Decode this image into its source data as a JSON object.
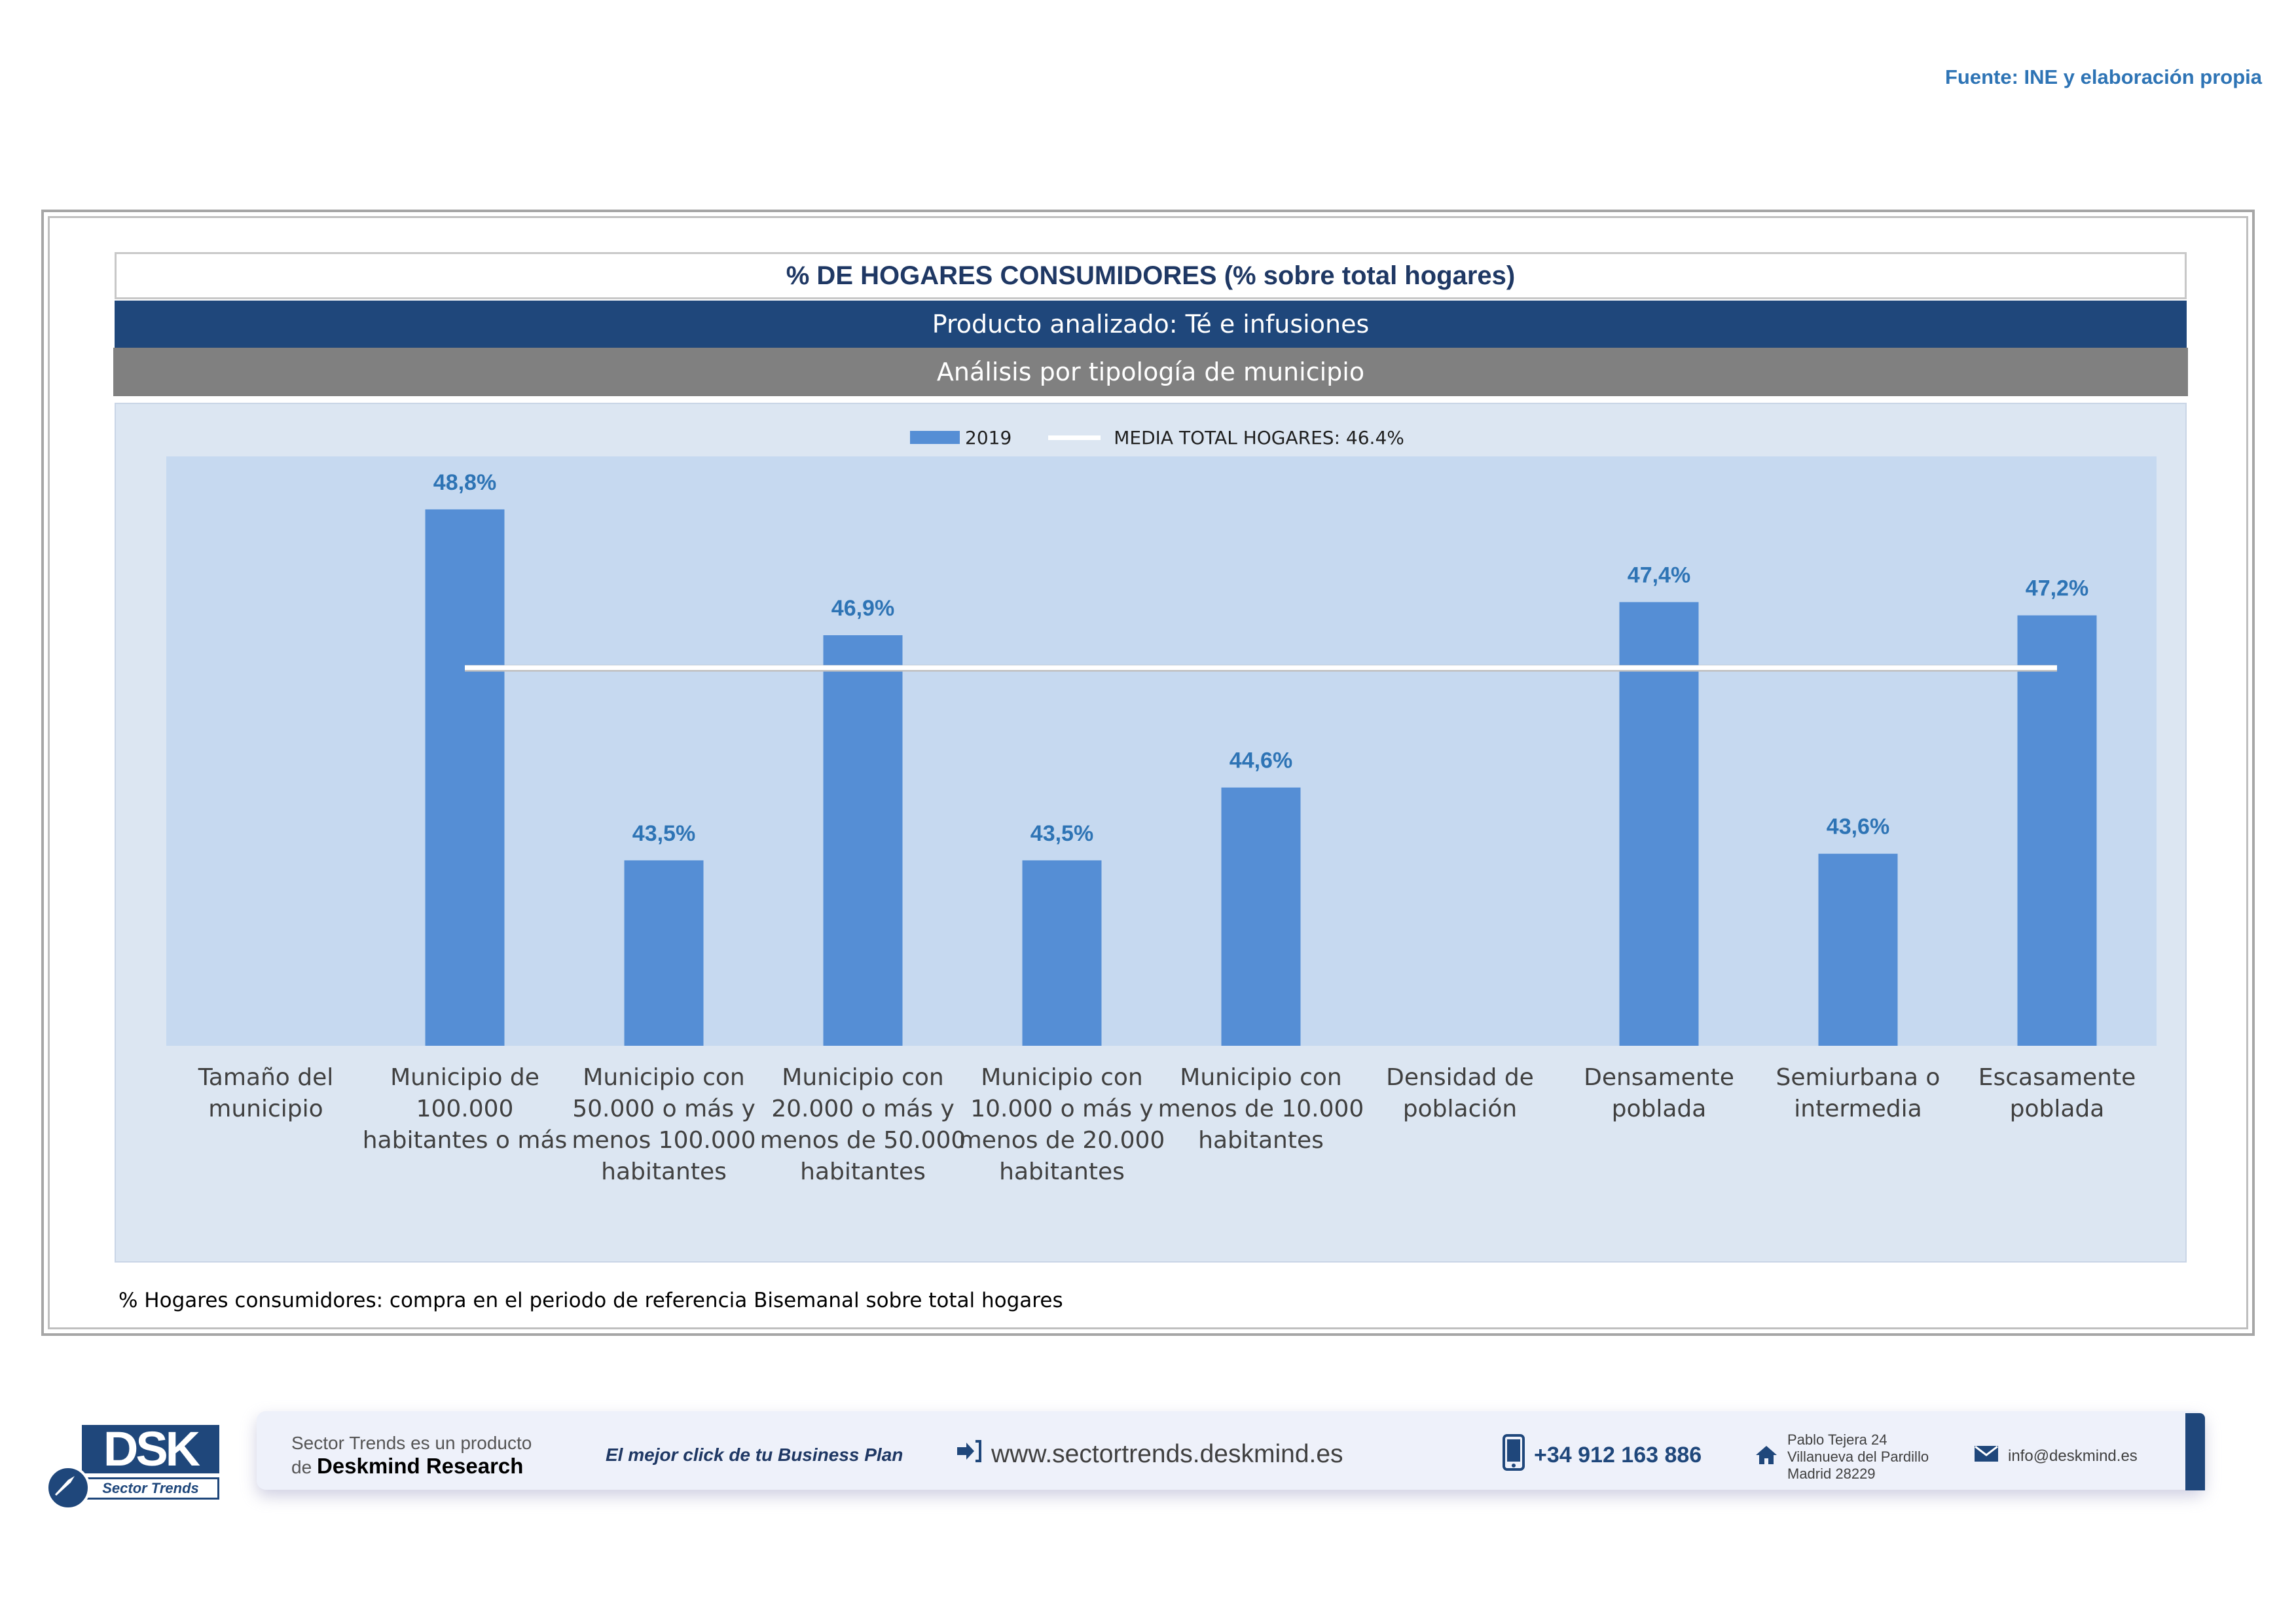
{
  "source": "Fuente: INE y elaboración propia",
  "header": {
    "title": "% DE HOGARES CONSUMIDORES (% sobre total hogares)",
    "product": "Producto analizado: Té e infusiones",
    "analysis": "Análisis por tipología de municipio"
  },
  "legend": {
    "series_label": "2019",
    "average_label": "MEDIA TOTAL  HOGARES:  46.4%"
  },
  "chart_data": {
    "type": "bar",
    "title": "% DE HOGARES CONSUMIDORES (% sobre total hogares)",
    "categories": [
      "Tamaño del municipio",
      "Municipio de 100.000 habitantes o más",
      "Municipio con 50.000 o más y menos 100.000 habitantes",
      "Municipio con 20.000 o más y menos de 50.000 habitantes",
      "Municipio con 10.000 o más y menos de 20.000 habitantes",
      "Municipio con menos de 10.000 habitantes",
      "Densidad de población",
      "Densamente poblada",
      "Semiurbana o intermedia",
      "Escasamente poblada"
    ],
    "category_lines": [
      [
        "Tamaño del",
        "municipio"
      ],
      [
        "Municipio de",
        "100.000",
        "habitantes o más"
      ],
      [
        "Municipio con",
        "50.000 o más y",
        "menos 100.000",
        "habitantes"
      ],
      [
        "Municipio con",
        "20.000 o más y",
        "menos de 50.000",
        "habitantes"
      ],
      [
        "Municipio con",
        "10.000 o más y",
        "menos de 20.000",
        "habitantes"
      ],
      [
        "Municipio con",
        "menos de 10.000",
        "habitantes"
      ],
      [
        "Densidad de",
        "población"
      ],
      [
        "Densamente",
        "poblada"
      ],
      [
        "Semiurbana o",
        "intermedia"
      ],
      [
        "Escasamente",
        "poblada"
      ]
    ],
    "series": [
      {
        "name": "2019",
        "color": "#558ED5",
        "values": [
          null,
          48.8,
          43.5,
          46.9,
          43.5,
          44.6,
          null,
          47.4,
          43.6,
          47.2
        ],
        "labels": [
          "",
          "48,8%",
          "43,5%",
          "46,9%",
          "43,5%",
          "44,6%",
          "",
          "47,4%",
          "43,6%",
          "47,2%"
        ]
      }
    ],
    "average": {
      "name": "MEDIA TOTAL  HOGARES",
      "value": 46.4,
      "from_category": 1,
      "to_category": 9
    },
    "ylim": [
      40.7,
      49.6
    ],
    "label_color": "#2E74B5"
  },
  "footnote": "% Hogares consumidores: compra en el periodo de referencia Bisemanal sobre total hogares",
  "footer": {
    "logo_text": "DSK",
    "logo_sub": "Sector Trends",
    "product_line1": "Sector Trends es un producto",
    "product_line2_prefix": "de",
    "product_line2_brand": "Deskmind Research",
    "slogan": "El mejor click de tu Business Plan",
    "website": "www.sectortrends.deskmind.es",
    "phone": "+34 912 163 886",
    "address_line1": "Pablo Tejera 24",
    "address_line2": "Villanueva del Pardillo",
    "address_line3": "Madrid 28229",
    "email": "info@deskmind.es"
  }
}
